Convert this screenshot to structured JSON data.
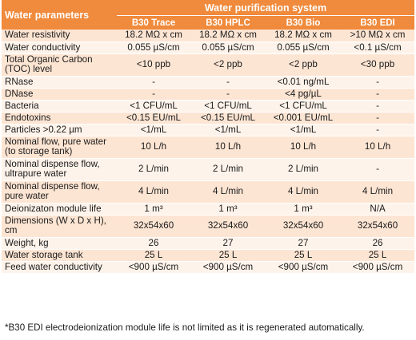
{
  "header": {
    "param_label": "Water parameters",
    "group_label": "Water purification system",
    "columns": [
      "B30 Trace",
      "B30 HPLC",
      "B30 Bio",
      "B30 EDI"
    ]
  },
  "rows": [
    {
      "label": "Water resistivity",
      "values": [
        "18.2 MΩ x cm",
        "18.2 MΩ x cm",
        "18.2 MΩ x cm",
        ">10 MΩ x cm"
      ]
    },
    {
      "label": "Water conductivity",
      "values": [
        "0.055 µS/cm",
        "0.055 µS/cm",
        "0.055 µS/cm",
        "<0.1 µS/cm"
      ]
    },
    {
      "label": "Total Organic Carbon (TOC) level",
      "values": [
        "<10 ppb",
        "<2 ppb",
        "<2 ppb",
        "<30 ppb"
      ]
    },
    {
      "label": "RNase",
      "values": [
        "-",
        "-",
        "<0.01 ng/mL",
        "-"
      ]
    },
    {
      "label": "DNase",
      "values": [
        "-",
        "-",
        "<4 pg/µL",
        "-"
      ]
    },
    {
      "label": "Bacteria",
      "values": [
        "<1 CFU/mL",
        "<1 CFU/mL",
        "<1 CFU/mL",
        "-"
      ]
    },
    {
      "label": "Endotoxins",
      "values": [
        "<0.15 EU/mL",
        "<0.15 EU/mL",
        "<0.001 EU/mL",
        "-"
      ]
    },
    {
      "label": "Particles >0.22 µm",
      "values": [
        "<1/mL",
        "<1/mL",
        "<1/mL",
        "-"
      ]
    },
    {
      "label": "Nominal flow, pure water  (to storage tank)",
      "values": [
        "10 L/h",
        "10 L/h",
        "10 L/h",
        "10 L/h"
      ]
    },
    {
      "label": "Nominal dispense flow, ultrapure water",
      "values": [
        "2 L/min",
        "2 L/min",
        "2 L/min",
        "-"
      ]
    },
    {
      "label": "Nominal dispense flow, pure water",
      "values": [
        "4 L/min",
        "4 L/min",
        "4 L/min",
        "4 L/min"
      ]
    },
    {
      "label": "Deionizaton module life",
      "values": [
        "1 m³",
        "1 m³",
        "1 m³",
        "N/A"
      ]
    },
    {
      "label": "Dimensions (W x D x H), cm",
      "values": [
        "32x54x60",
        "32x54x60",
        "32x54x60",
        "32x54x60"
      ]
    },
    {
      "label": "Weight, kg",
      "values": [
        "26",
        "27",
        "27",
        "26"
      ]
    },
    {
      "label": "Water storage tank",
      "values": [
        "25 L",
        "25 L",
        "25 L",
        "25 L"
      ]
    },
    {
      "label": "Feed water conductivity",
      "values": [
        "<900 µS/cm",
        "<900 µS/cm",
        "<900 µS/cm",
        "<900 µS/cm"
      ]
    }
  ],
  "footnote": "*B30 EDI electrodeionization module life is not limited as it is regenerated automatically.",
  "colors": {
    "header_bg": "#f08a3c",
    "row_odd": "#fde5d3",
    "row_even": "#fef3ea"
  }
}
